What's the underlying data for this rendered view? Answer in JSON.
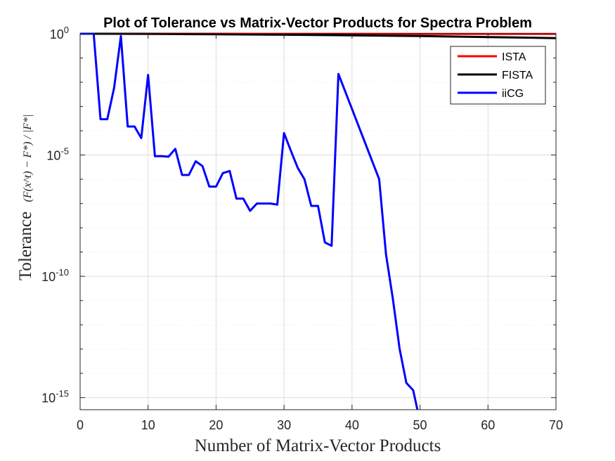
{
  "chart_data": {
    "type": "line",
    "title": "Plot of Tolerance vs Matrix-Vector Products for Spectra Problem",
    "xlabel": "Number of Matrix-Vector Products",
    "ylabel": "Tolerance",
    "ylabel_formula": "(F(x^t) − F*) / |F*|",
    "xlim": [
      0,
      70
    ],
    "ylim_exponent": [
      -15.5,
      0
    ],
    "yscale": "log",
    "grid": true,
    "legend_position": "top-right",
    "x_ticks": [
      "0",
      "10",
      "20",
      "30",
      "40",
      "50",
      "60",
      "70"
    ],
    "y_ticks": [
      {
        "base": "10",
        "exp": "0",
        "value": 1.0
      },
      {
        "base": "10",
        "exp": "-5",
        "value": 1e-05
      },
      {
        "base": "10",
        "exp": "-10",
        "value": 1e-10
      },
      {
        "base": "10",
        "exp": "-15",
        "value": 1e-15
      }
    ],
    "series": [
      {
        "name": "ISTA",
        "color": "#ff0000",
        "x": [
          0,
          10,
          20,
          30,
          40,
          50,
          60,
          70
        ],
        "y": [
          1.0,
          0.999,
          0.997,
          0.995,
          0.992,
          0.988,
          0.984,
          0.98
        ]
      },
      {
        "name": "FISTA",
        "color": "#000000",
        "x": [
          0,
          10,
          20,
          30,
          40,
          50,
          60,
          70
        ],
        "y": [
          1.0,
          0.98,
          0.95,
          0.91,
          0.86,
          0.8,
          0.73,
          0.66
        ]
      },
      {
        "name": "iiCG",
        "color": "#0000ff",
        "x": [
          0,
          1,
          2,
          3,
          4,
          5,
          6,
          7,
          8,
          9,
          10,
          11,
          12,
          13,
          14,
          15,
          16,
          17,
          18,
          19,
          20,
          21,
          22,
          23,
          24,
          25,
          26,
          27,
          28,
          29,
          30,
          31,
          32,
          33,
          34,
          35,
          36,
          37,
          38,
          44,
          45,
          46,
          47,
          48,
          49,
          50,
          51
        ],
        "y": [
          1,
          1,
          1,
          0.0003,
          0.0003,
          0.006,
          0.8,
          0.00015,
          0.00015,
          5e-05,
          0.02,
          9e-06,
          9e-06,
          8.5e-06,
          1.8e-05,
          1.5e-06,
          1.5e-06,
          5.5e-06,
          3.5e-06,
          5e-07,
          5e-07,
          1.8e-06,
          2.2e-06,
          1.6e-07,
          1.6e-07,
          5e-08,
          1e-07,
          1e-07,
          1e-07,
          9e-08,
          8e-05,
          1.5e-05,
          3e-06,
          1e-06,
          8e-08,
          8e-08,
          2.5e-09,
          1.8e-09,
          0.022,
          1e-06,
          8e-10,
          1.2e-11,
          1e-13,
          4e-15,
          2e-15,
          1e-16,
          2e-17
        ]
      }
    ]
  }
}
